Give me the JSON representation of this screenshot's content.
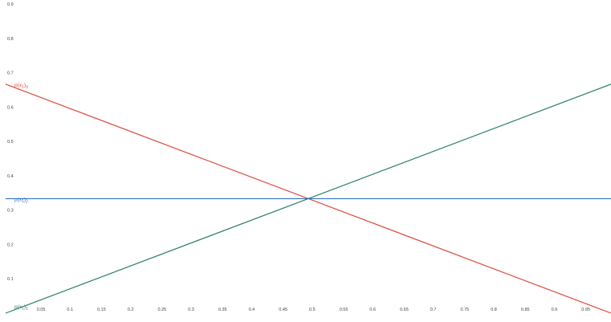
{
  "chart_data": {
    "type": "line",
    "title": "",
    "xlabel": "",
    "ylabel": "",
    "xlim": [
      0,
      1
    ],
    "ylim": [
      0,
      0.9
    ],
    "grid": false,
    "x_ticks": [
      "0.05",
      "0.1",
      "0.15",
      "0.2",
      "0.25",
      "0.3",
      "0.35",
      "0.4",
      "0.45",
      "0.5",
      "0.55",
      "0.6",
      "0.65",
      "0.7",
      "0.75",
      "0.8",
      "0.85",
      "0.9",
      "0.95"
    ],
    "x_tick_values": [
      0.05,
      0.1,
      0.15,
      0.2,
      0.25,
      0.3,
      0.35,
      0.4,
      0.45,
      0.5,
      0.55,
      0.6,
      0.65,
      0.7,
      0.75,
      0.8,
      0.85,
      0.9,
      0.95
    ],
    "y_ticks": [
      "0.1",
      "0.2",
      "0.3",
      "0.4",
      "0.5",
      "0.6",
      "0.7",
      "0.8",
      "0.9"
    ],
    "y_tick_values": [
      0.1,
      0.2,
      0.3,
      0.4,
      0.5,
      0.6,
      0.7,
      0.8,
      0.9
    ],
    "series": [
      {
        "label_main": "p(x",
        "label_sub1": "1",
        "label_close": ")",
        "label_sub2": "3",
        "color": "#db4b3f",
        "x": [
          0,
          1
        ],
        "y": [
          0.6667,
          0
        ]
      },
      {
        "label_main": "p(x",
        "label_sub1": "1",
        "label_close": ")",
        "label_sub2": "2",
        "color": "#2f72c8",
        "x": [
          0,
          1
        ],
        "y": [
          0.3333,
          0.3333
        ]
      },
      {
        "label_main": "p(x",
        "label_sub1": "1",
        "label_close": ")",
        "label_sub2": "1",
        "color": "#2a7d67",
        "x": [
          0,
          1
        ],
        "y": [
          0,
          0.6667
        ]
      }
    ]
  }
}
